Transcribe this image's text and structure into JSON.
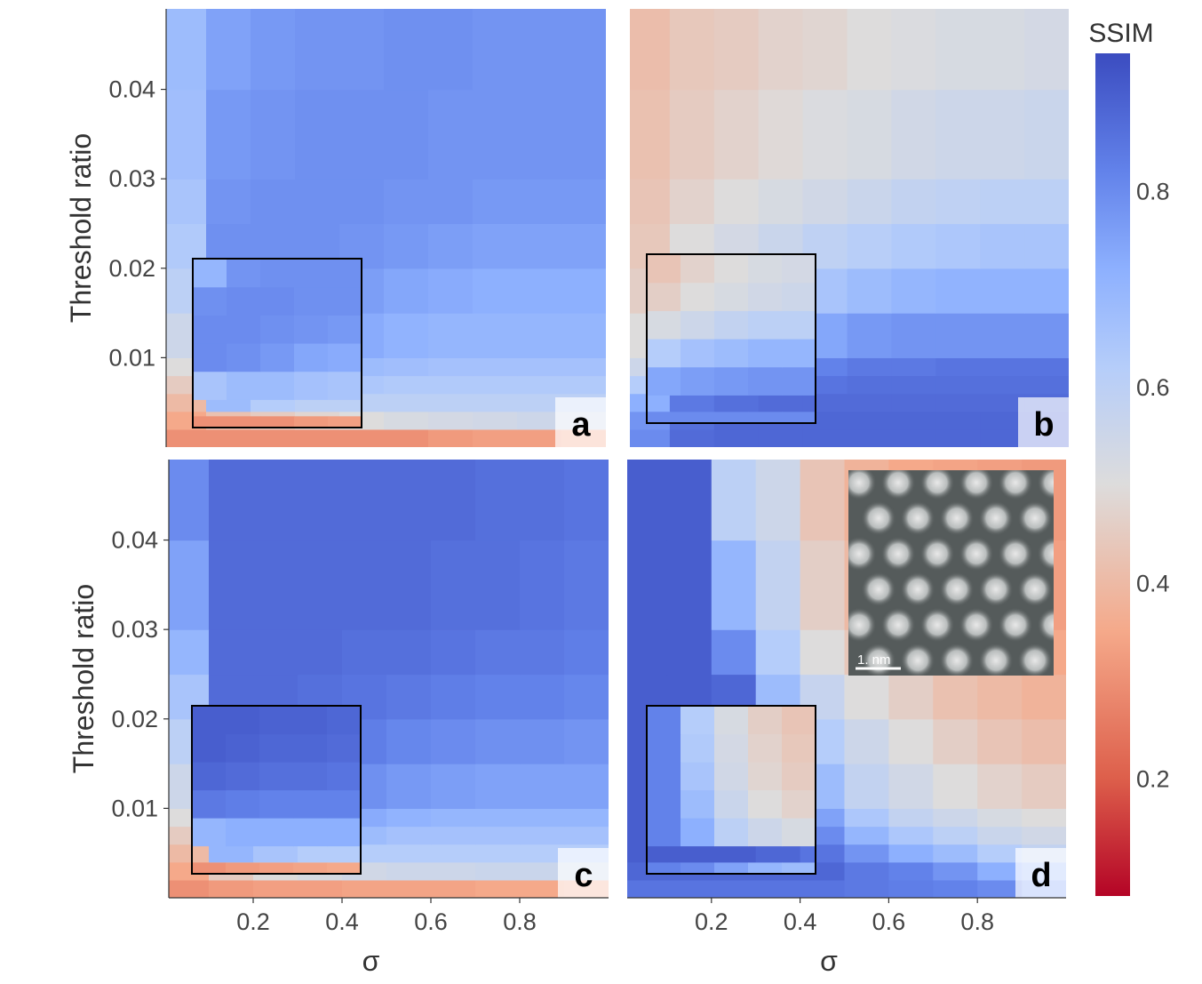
{
  "chart_data": {
    "type": "heatmap",
    "xlabel": "σ",
    "ylabel": "Threshold ratio",
    "xlim": [
      0.01,
      1.0
    ],
    "ylim": [
      0.0,
      0.049
    ],
    "x_ticks": [
      "0.2",
      "0.4",
      "0.6",
      "0.8"
    ],
    "x_tick_values": [
      0.2,
      0.4,
      0.6,
      0.8
    ],
    "y_ticks": [
      "0.01",
      "0.02",
      "0.03",
      "0.04"
    ],
    "y_tick_values": [
      0.01,
      0.02,
      0.03,
      0.04
    ],
    "x_bin_edges": [
      0,
      0.1,
      0.2,
      0.3,
      0.4,
      0.5,
      0.6,
      0.7,
      0.8,
      0.9,
      1.0
    ],
    "y_bin_edges": [
      0,
      0.002,
      0.004,
      0.006,
      0.008,
      0.01,
      0.015,
      0.02,
      0.025,
      0.03,
      0.04,
      0.049
    ],
    "colorbar": {
      "title": "SSIM",
      "range": [
        0.08,
        0.94
      ],
      "ticks": [
        "0.2",
        "0.4",
        "0.6",
        "0.8"
      ],
      "tick_values": [
        0.2,
        0.4,
        0.6,
        0.8
      ],
      "colormap": "coolwarm (reversed: red low, blue high)",
      "stops": [
        {
          "v": 0.08,
          "c": "#b40426"
        },
        {
          "v": 0.2,
          "c": "#dd5f4b"
        },
        {
          "v": 0.35,
          "c": "#f5a98a"
        },
        {
          "v": 0.5,
          "c": "#dddcdc"
        },
        {
          "v": 0.62,
          "c": "#b5cdfa"
        },
        {
          "v": 0.72,
          "c": "#8db0fe"
        },
        {
          "v": 0.82,
          "c": "#6282ea"
        },
        {
          "v": 0.94,
          "c": "#3b4cc0"
        }
      ]
    },
    "panels": [
      {
        "label": "a",
        "values": [
          [
            0.3,
            0.3,
            0.3,
            0.3,
            0.3,
            0.3,
            0.32,
            0.33,
            0.33,
            0.34
          ],
          [
            0.35,
            0.42,
            0.45,
            0.48,
            0.5,
            0.52,
            0.53,
            0.54,
            0.55,
            0.55
          ],
          [
            0.4,
            0.68,
            0.62,
            0.6,
            0.6,
            0.6,
            0.6,
            0.6,
            0.6,
            0.6
          ],
          [
            0.45,
            0.75,
            0.7,
            0.66,
            0.64,
            0.63,
            0.63,
            0.63,
            0.63,
            0.63
          ],
          [
            0.5,
            0.78,
            0.75,
            0.72,
            0.68,
            0.67,
            0.66,
            0.66,
            0.66,
            0.66
          ],
          [
            0.55,
            0.79,
            0.78,
            0.76,
            0.73,
            0.71,
            0.7,
            0.7,
            0.7,
            0.7
          ],
          [
            0.6,
            0.79,
            0.79,
            0.78,
            0.76,
            0.74,
            0.73,
            0.72,
            0.72,
            0.72
          ],
          [
            0.63,
            0.79,
            0.79,
            0.79,
            0.78,
            0.77,
            0.76,
            0.75,
            0.75,
            0.75
          ],
          [
            0.65,
            0.78,
            0.79,
            0.79,
            0.79,
            0.78,
            0.78,
            0.77,
            0.77,
            0.77
          ],
          [
            0.67,
            0.77,
            0.78,
            0.79,
            0.79,
            0.79,
            0.78,
            0.78,
            0.78,
            0.78
          ],
          [
            0.68,
            0.75,
            0.77,
            0.78,
            0.78,
            0.79,
            0.79,
            0.78,
            0.78,
            0.78
          ]
        ],
        "inset_values": [
          [
            0.3,
            0.3,
            0.3,
            0.32,
            0.33
          ],
          [
            0.65,
            0.68,
            0.68,
            0.66,
            0.65
          ],
          [
            0.8,
            0.79,
            0.77,
            0.74,
            0.73
          ],
          [
            0.8,
            0.8,
            0.79,
            0.78,
            0.77
          ],
          [
            0.79,
            0.8,
            0.8,
            0.79,
            0.79
          ],
          [
            0.7,
            0.78,
            0.79,
            0.79,
            0.79
          ]
        ]
      },
      {
        "label": "b",
        "values": [
          [
            0.8,
            0.87,
            0.88,
            0.88,
            0.88,
            0.88,
            0.88,
            0.88,
            0.88,
            0.88
          ],
          [
            0.78,
            0.86,
            0.88,
            0.88,
            0.88,
            0.88,
            0.88,
            0.88,
            0.88,
            0.88
          ],
          [
            0.72,
            0.84,
            0.86,
            0.87,
            0.87,
            0.87,
            0.87,
            0.87,
            0.87,
            0.87
          ],
          [
            0.62,
            0.75,
            0.8,
            0.84,
            0.85,
            0.86,
            0.86,
            0.86,
            0.86,
            0.86
          ],
          [
            0.55,
            0.68,
            0.74,
            0.78,
            0.82,
            0.84,
            0.84,
            0.85,
            0.85,
            0.85
          ],
          [
            0.5,
            0.6,
            0.65,
            0.7,
            0.74,
            0.77,
            0.78,
            0.78,
            0.78,
            0.78
          ],
          [
            0.46,
            0.53,
            0.57,
            0.61,
            0.65,
            0.68,
            0.7,
            0.71,
            0.71,
            0.71
          ],
          [
            0.44,
            0.5,
            0.53,
            0.56,
            0.59,
            0.61,
            0.63,
            0.64,
            0.65,
            0.65
          ],
          [
            0.43,
            0.47,
            0.5,
            0.52,
            0.54,
            0.56,
            0.58,
            0.59,
            0.6,
            0.6
          ],
          [
            0.42,
            0.45,
            0.47,
            0.49,
            0.51,
            0.52,
            0.54,
            0.55,
            0.55,
            0.56
          ],
          [
            0.41,
            0.44,
            0.45,
            0.47,
            0.48,
            0.5,
            0.51,
            0.52,
            0.52,
            0.53
          ]
        ],
        "inset_values": [
          [
            0.8,
            0.8,
            0.8,
            0.8,
            0.8
          ],
          [
            0.74,
            0.76,
            0.77,
            0.78,
            0.78
          ],
          [
            0.62,
            0.66,
            0.68,
            0.7,
            0.7
          ],
          [
            0.52,
            0.55,
            0.58,
            0.6,
            0.6
          ],
          [
            0.46,
            0.5,
            0.52,
            0.54,
            0.55
          ],
          [
            0.43,
            0.47,
            0.5,
            0.52,
            0.53
          ]
        ]
      },
      {
        "label": "c",
        "values": [
          [
            0.3,
            0.32,
            0.33,
            0.33,
            0.34,
            0.34,
            0.34,
            0.35,
            0.35,
            0.36
          ],
          [
            0.35,
            0.45,
            0.5,
            0.52,
            0.54,
            0.55,
            0.55,
            0.56,
            0.56,
            0.56
          ],
          [
            0.4,
            0.7,
            0.65,
            0.62,
            0.62,
            0.62,
            0.62,
            0.62,
            0.62,
            0.62
          ],
          [
            0.45,
            0.8,
            0.75,
            0.7,
            0.68,
            0.66,
            0.66,
            0.66,
            0.66,
            0.66
          ],
          [
            0.5,
            0.84,
            0.8,
            0.77,
            0.73,
            0.71,
            0.7,
            0.7,
            0.7,
            0.7
          ],
          [
            0.55,
            0.86,
            0.84,
            0.82,
            0.79,
            0.77,
            0.76,
            0.75,
            0.75,
            0.75
          ],
          [
            0.6,
            0.87,
            0.86,
            0.85,
            0.83,
            0.81,
            0.8,
            0.79,
            0.79,
            0.78
          ],
          [
            0.65,
            0.87,
            0.87,
            0.86,
            0.85,
            0.84,
            0.83,
            0.82,
            0.82,
            0.81
          ],
          [
            0.7,
            0.87,
            0.87,
            0.87,
            0.86,
            0.86,
            0.85,
            0.84,
            0.84,
            0.83
          ],
          [
            0.75,
            0.87,
            0.87,
            0.87,
            0.87,
            0.87,
            0.86,
            0.86,
            0.85,
            0.84
          ],
          [
            0.8,
            0.87,
            0.87,
            0.87,
            0.87,
            0.87,
            0.87,
            0.86,
            0.86,
            0.85
          ]
        ],
        "inset_values": [
          [
            0.3,
            0.32,
            0.33,
            0.34,
            0.35
          ],
          [
            0.7,
            0.72,
            0.72,
            0.72,
            0.72
          ],
          [
            0.84,
            0.83,
            0.82,
            0.82,
            0.82
          ],
          [
            0.88,
            0.87,
            0.86,
            0.86,
            0.85
          ],
          [
            0.9,
            0.89,
            0.88,
            0.88,
            0.87
          ],
          [
            0.9,
            0.9,
            0.89,
            0.89,
            0.88
          ]
        ]
      },
      {
        "label": "d",
        "values": [
          [
            0.85,
            0.85,
            0.85,
            0.85,
            0.85,
            0.84,
            0.83,
            0.82,
            0.8,
            0.75
          ],
          [
            0.88,
            0.88,
            0.88,
            0.88,
            0.88,
            0.84,
            0.82,
            0.78,
            0.72,
            0.68
          ],
          [
            0.9,
            0.9,
            0.9,
            0.88,
            0.85,
            0.78,
            0.72,
            0.68,
            0.62,
            0.58
          ],
          [
            0.9,
            0.9,
            0.9,
            0.85,
            0.8,
            0.7,
            0.64,
            0.6,
            0.56,
            0.54
          ],
          [
            0.9,
            0.9,
            0.9,
            0.82,
            0.75,
            0.64,
            0.58,
            0.55,
            0.52,
            0.5
          ],
          [
            0.9,
            0.9,
            0.9,
            0.78,
            0.68,
            0.58,
            0.54,
            0.5,
            0.47,
            0.45
          ],
          [
            0.9,
            0.9,
            0.9,
            0.72,
            0.62,
            0.55,
            0.5,
            0.46,
            0.43,
            0.41
          ],
          [
            0.9,
            0.9,
            0.88,
            0.68,
            0.57,
            0.5,
            0.46,
            0.42,
            0.4,
            0.38
          ],
          [
            0.9,
            0.9,
            0.8,
            0.62,
            0.5,
            0.44,
            0.4,
            0.38,
            0.36,
            0.35
          ],
          [
            0.9,
            0.9,
            0.7,
            0.58,
            0.46,
            0.4,
            0.37,
            0.35,
            0.34,
            0.33
          ],
          [
            0.9,
            0.9,
            0.6,
            0.55,
            0.43,
            0.38,
            0.35,
            0.34,
            0.33,
            0.32
          ]
        ],
        "inset_values": [
          [
            0.82,
            0.8,
            0.75,
            0.7,
            0.68
          ],
          [
            0.82,
            0.72,
            0.6,
            0.55,
            0.52
          ],
          [
            0.82,
            0.68,
            0.56,
            0.5,
            0.47
          ],
          [
            0.82,
            0.65,
            0.54,
            0.48,
            0.45
          ],
          [
            0.82,
            0.63,
            0.53,
            0.47,
            0.44
          ],
          [
            0.82,
            0.62,
            0.52,
            0.46,
            0.43
          ]
        ],
        "micrograph": {
          "scale_bar_label": "1. nm"
        }
      }
    ]
  }
}
